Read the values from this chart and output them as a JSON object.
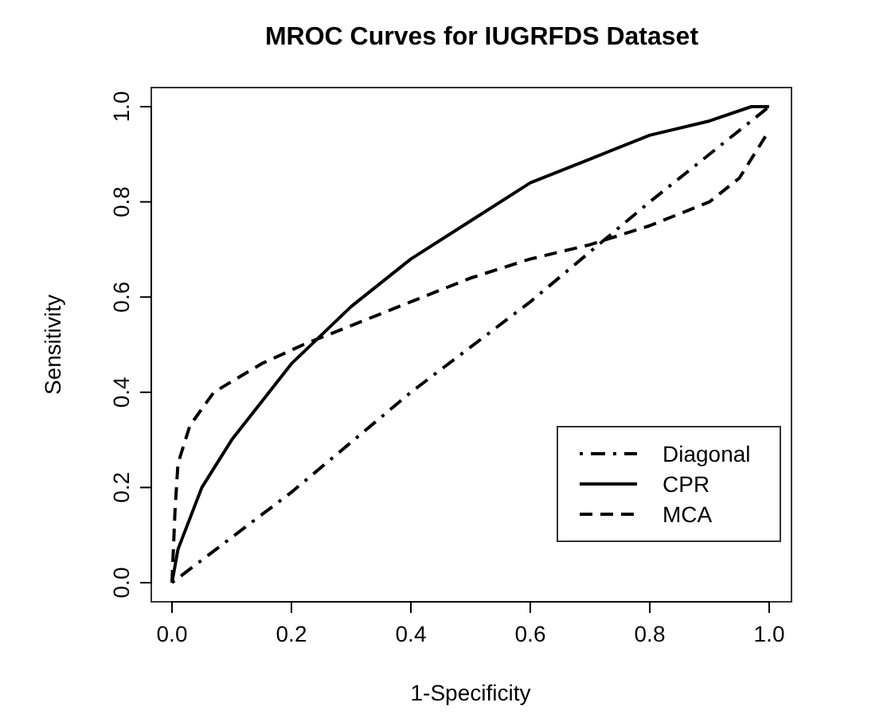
{
  "chart_data": {
    "type": "line",
    "title": "MROC Curves for IUGRFDS Dataset",
    "xlabel": "1-Specificity",
    "ylabel": "Sensitivity",
    "xlim": [
      0,
      1
    ],
    "ylim": [
      0,
      1
    ],
    "xticks": [
      {
        "value": 0,
        "label": "0.0"
      },
      0.2,
      0.4,
      0.6,
      0.8,
      {
        "value": 1,
        "label": "1.0"
      }
    ],
    "yticks": [
      {
        "value": 0,
        "label": "0.0"
      },
      0.2,
      0.4,
      0.6,
      0.8,
      {
        "value": 1,
        "label": "1.0"
      }
    ],
    "legend": "bottom right",
    "grid": false,
    "series": [
      {
        "name": "Diagonal",
        "color": "#000000",
        "line_style": "dashdot",
        "x": [
          0,
          0.2,
          0.4,
          0.6,
          0.8,
          1
        ],
        "values": [
          0,
          0.19,
          0.4,
          0.59,
          0.8,
          1
        ]
      },
      {
        "name": "CPR",
        "color": "#000000",
        "line_style": "solid",
        "x": [
          0,
          0.01,
          0.05,
          0.1,
          0.2,
          0.3,
          0.4,
          0.5,
          0.6,
          0.7,
          0.8,
          0.9,
          0.97,
          1
        ],
        "values": [
          0,
          0.07,
          0.2,
          0.3,
          0.46,
          0.58,
          0.68,
          0.76,
          0.84,
          0.89,
          0.94,
          0.97,
          1,
          1
        ]
      },
      {
        "name": "MCA",
        "color": "#000000",
        "line_style": "dashed",
        "x": [
          0,
          0.005,
          0.01,
          0.03,
          0.07,
          0.15,
          0.22,
          0.3,
          0.4,
          0.5,
          0.6,
          0.7,
          0.8,
          0.9,
          0.95,
          1
        ],
        "values": [
          0,
          0.15,
          0.25,
          0.33,
          0.4,
          0.46,
          0.5,
          0.54,
          0.59,
          0.64,
          0.68,
          0.71,
          0.75,
          0.8,
          0.85,
          0.95
        ]
      }
    ]
  }
}
